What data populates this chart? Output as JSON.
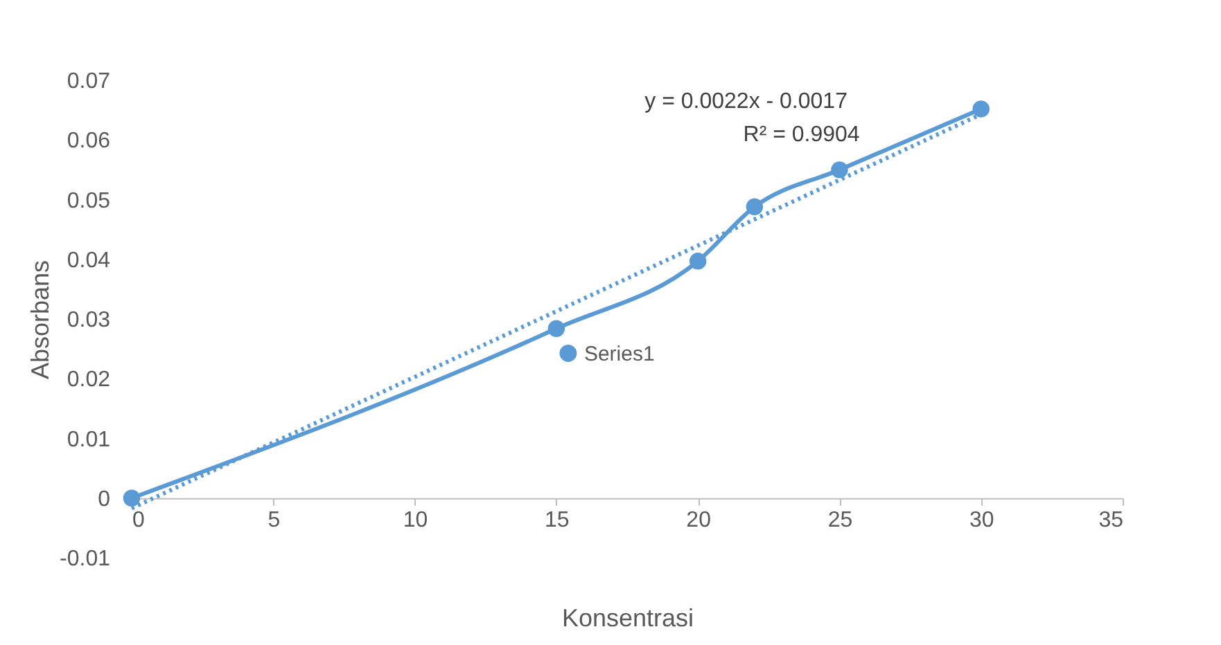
{
  "chart_data": {
    "type": "line",
    "xlabel": "Konsentrasi",
    "ylabel": "Absorbans",
    "x": [
      0,
      15,
      20,
      22,
      25,
      30
    ],
    "series": [
      {
        "name": "Series1",
        "color": "#5b9bd5",
        "values": [
          0,
          0.0284,
          0.0397,
          0.0488,
          0.055,
          0.0652
        ],
        "marker": "circle",
        "line_style": "solid"
      },
      {
        "type": "line",
        "color": "#5b9bd5",
        "x": [
          0,
          30
        ],
        "values": [
          -0.0017,
          0.0643
        ],
        "marker": "none",
        "line_style": "dotted"
      }
    ],
    "annotations": [
      "y = 0.0022x - 0.0017",
      "R² = 0.9904"
    ],
    "xlim": [
      0,
      35
    ],
    "xticks": [
      0,
      5,
      10,
      15,
      20,
      25,
      30,
      35
    ],
    "ylim": [
      -0.01,
      0.07
    ],
    "yticks": [
      -0.01,
      0,
      0.01,
      0.02,
      0.03,
      0.04,
      0.05,
      0.06,
      0.07
    ],
    "grid": false,
    "legend": "center"
  }
}
